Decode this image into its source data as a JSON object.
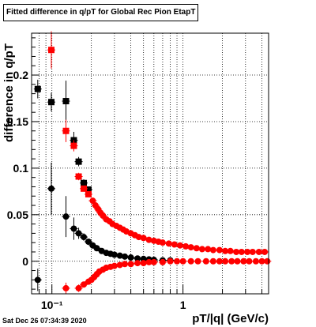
{
  "chart_data": {
    "type": "scatter",
    "title": "Fitted difference in q/pT for Global Rec Pion EtapT",
    "xlabel": "pT/|q| (GeV/c)",
    "ylabel": "difference in q/pT",
    "xscale": "log",
    "xlim": [
      0.07,
      4.5
    ],
    "ylim": [
      -0.035,
      0.245
    ],
    "grid": true,
    "yticks": [
      {
        "value": 0,
        "label": "0"
      },
      {
        "value": 0.05,
        "label": "0.05"
      },
      {
        "value": 0.1,
        "label": "0.1"
      },
      {
        "value": 0.15,
        "label": "0.15"
      },
      {
        "value": 0.2,
        "label": "0.2"
      }
    ],
    "xticks": [
      {
        "value": 0.1,
        "label": "10⁻¹"
      },
      {
        "value": 1,
        "label": "1"
      }
    ],
    "series": [
      {
        "color": "#000000",
        "marker": "square",
        "points": [
          {
            "x": 0.078,
            "y": 0.185,
            "err": 0.01
          },
          {
            "x": 0.099,
            "y": 0.171,
            "err": 0.01
          },
          {
            "x": 0.128,
            "y": 0.172,
            "err": 0.022
          },
          {
            "x": 0.147,
            "y": 0.13,
            "err": 0.009
          },
          {
            "x": 0.16,
            "y": 0.107,
            "err": 0.005
          },
          {
            "x": 0.175,
            "y": 0.084,
            "err": 0.004
          },
          {
            "x": 0.19,
            "y": 0.077,
            "err": 0.003
          }
        ]
      },
      {
        "color": "#000000",
        "marker": "circle",
        "points": [
          {
            "x": 0.078,
            "y": -0.02,
            "err": 0.012
          },
          {
            "x": 0.099,
            "y": 0.078,
            "err": 0.028
          },
          {
            "x": 0.128,
            "y": 0.048,
            "err": 0.022
          },
          {
            "x": 0.147,
            "y": 0.035,
            "err": 0.012
          },
          {
            "x": 0.16,
            "y": 0.03,
            "err": 0.006
          },
          {
            "x": 0.175,
            "y": 0.026,
            "err": 0.004
          },
          {
            "x": 0.19,
            "y": 0.021,
            "err": 0.003
          },
          {
            "x": 0.205,
            "y": 0.017,
            "err": 0.002
          },
          {
            "x": 0.22,
            "y": 0.014
          },
          {
            "x": 0.24,
            "y": 0.011
          },
          {
            "x": 0.26,
            "y": 0.009
          },
          {
            "x": 0.28,
            "y": 0.008
          },
          {
            "x": 0.3,
            "y": 0.007
          },
          {
            "x": 0.33,
            "y": 0.006
          },
          {
            "x": 0.36,
            "y": 0.005
          },
          {
            "x": 0.4,
            "y": 0.004
          },
          {
            "x": 0.45,
            "y": 0.003
          },
          {
            "x": 0.5,
            "y": 0.0025
          },
          {
            "x": 0.55,
            "y": 0.002
          },
          {
            "x": 0.6,
            "y": 0.0015
          },
          {
            "x": 0.7,
            "y": 0.001
          },
          {
            "x": 0.8,
            "y": 0.001
          }
        ]
      },
      {
        "color": "#ff0000",
        "marker": "square",
        "points": [
          {
            "x": 0.099,
            "y": 0.227,
            "err": 0.02
          },
          {
            "x": 0.128,
            "y": 0.14,
            "err": 0.012
          },
          {
            "x": 0.147,
            "y": 0.124,
            "err": 0.006
          },
          {
            "x": 0.16,
            "y": 0.091,
            "err": 0.004
          },
          {
            "x": 0.175,
            "y": 0.078,
            "err": 0.003
          },
          {
            "x": 0.19,
            "y": 0.072,
            "err": 0.002
          }
        ]
      },
      {
        "color": "#ff0000",
        "marker": "circle",
        "points": [
          {
            "x": 0.205,
            "y": 0.065
          },
          {
            "x": 0.215,
            "y": 0.06
          },
          {
            "x": 0.225,
            "y": 0.056
          },
          {
            "x": 0.235,
            "y": 0.052
          },
          {
            "x": 0.245,
            "y": 0.049
          },
          {
            "x": 0.26,
            "y": 0.045
          },
          {
            "x": 0.275,
            "y": 0.043
          },
          {
            "x": 0.29,
            "y": 0.04
          },
          {
            "x": 0.31,
            "y": 0.038
          },
          {
            "x": 0.33,
            "y": 0.036
          },
          {
            "x": 0.35,
            "y": 0.034
          },
          {
            "x": 0.37,
            "y": 0.032
          },
          {
            "x": 0.4,
            "y": 0.03
          },
          {
            "x": 0.43,
            "y": 0.028
          },
          {
            "x": 0.46,
            "y": 0.026
          },
          {
            "x": 0.5,
            "y": 0.025
          },
          {
            "x": 0.55,
            "y": 0.023
          },
          {
            "x": 0.6,
            "y": 0.022
          },
          {
            "x": 0.65,
            "y": 0.021
          },
          {
            "x": 0.7,
            "y": 0.02
          },
          {
            "x": 0.78,
            "y": 0.019
          },
          {
            "x": 0.86,
            "y": 0.018
          },
          {
            "x": 0.95,
            "y": 0.017
          },
          {
            "x": 1.05,
            "y": 0.016
          },
          {
            "x": 1.15,
            "y": 0.015
          },
          {
            "x": 1.27,
            "y": 0.014
          },
          {
            "x": 1.4,
            "y": 0.013
          },
          {
            "x": 1.55,
            "y": 0.013
          },
          {
            "x": 1.7,
            "y": 0.012
          },
          {
            "x": 1.9,
            "y": 0.012
          },
          {
            "x": 2.1,
            "y": 0.011
          },
          {
            "x": 2.3,
            "y": 0.011
          },
          {
            "x": 2.55,
            "y": 0.01
          },
          {
            "x": 2.8,
            "y": 0.01
          },
          {
            "x": 3.1,
            "y": 0.01
          },
          {
            "x": 3.4,
            "y": 0.01
          },
          {
            "x": 3.8,
            "y": 0.01
          },
          {
            "x": 4.2,
            "y": 0.01
          }
        ]
      },
      {
        "color": "#ff0000",
        "marker": "circle",
        "points": [
          {
            "x": 0.128,
            "y": -0.029,
            "err": 0.006
          },
          {
            "x": 0.16,
            "y": -0.029,
            "err": 0.004
          },
          {
            "x": 0.175,
            "y": -0.025
          },
          {
            "x": 0.19,
            "y": -0.022
          },
          {
            "x": 0.2,
            "y": -0.02
          },
          {
            "x": 0.21,
            "y": -0.017
          },
          {
            "x": 0.22,
            "y": -0.014
          },
          {
            "x": 0.23,
            "y": -0.011
          },
          {
            "x": 0.245,
            "y": -0.009
          },
          {
            "x": 0.26,
            "y": -0.007
          },
          {
            "x": 0.28,
            "y": -0.006
          },
          {
            "x": 0.3,
            "y": -0.005
          },
          {
            "x": 0.33,
            "y": -0.004
          },
          {
            "x": 0.36,
            "y": -0.003
          },
          {
            "x": 0.4,
            "y": -0.003
          },
          {
            "x": 0.45,
            "y": -0.002
          },
          {
            "x": 0.5,
            "y": -0.002
          },
          {
            "x": 0.55,
            "y": -0.001
          },
          {
            "x": 0.6,
            "y": -0.001
          },
          {
            "x": 0.7,
            "y": -0.001
          },
          {
            "x": 0.8,
            "y": 0.0
          },
          {
            "x": 0.9,
            "y": 0.0
          },
          {
            "x": 1.0,
            "y": 0.0
          },
          {
            "x": 1.15,
            "y": 0.0
          },
          {
            "x": 1.3,
            "y": 0.0
          },
          {
            "x": 1.5,
            "y": 0.0
          },
          {
            "x": 1.7,
            "y": 0.0
          },
          {
            "x": 1.9,
            "y": 0.0
          },
          {
            "x": 2.1,
            "y": 0.0
          },
          {
            "x": 2.35,
            "y": 0.0
          },
          {
            "x": 2.6,
            "y": 0.0
          },
          {
            "x": 2.9,
            "y": 0.0
          },
          {
            "x": 3.2,
            "y": 0.0
          },
          {
            "x": 3.6,
            "y": 0.0
          },
          {
            "x": 4.0,
            "y": 0.0
          },
          {
            "x": 4.4,
            "y": 0.0
          }
        ]
      }
    ]
  },
  "timestamp": "Sat Dec 26 07:34:39 2020",
  "colors": {
    "primary": "#000000",
    "secondary": "#ff0000"
  }
}
